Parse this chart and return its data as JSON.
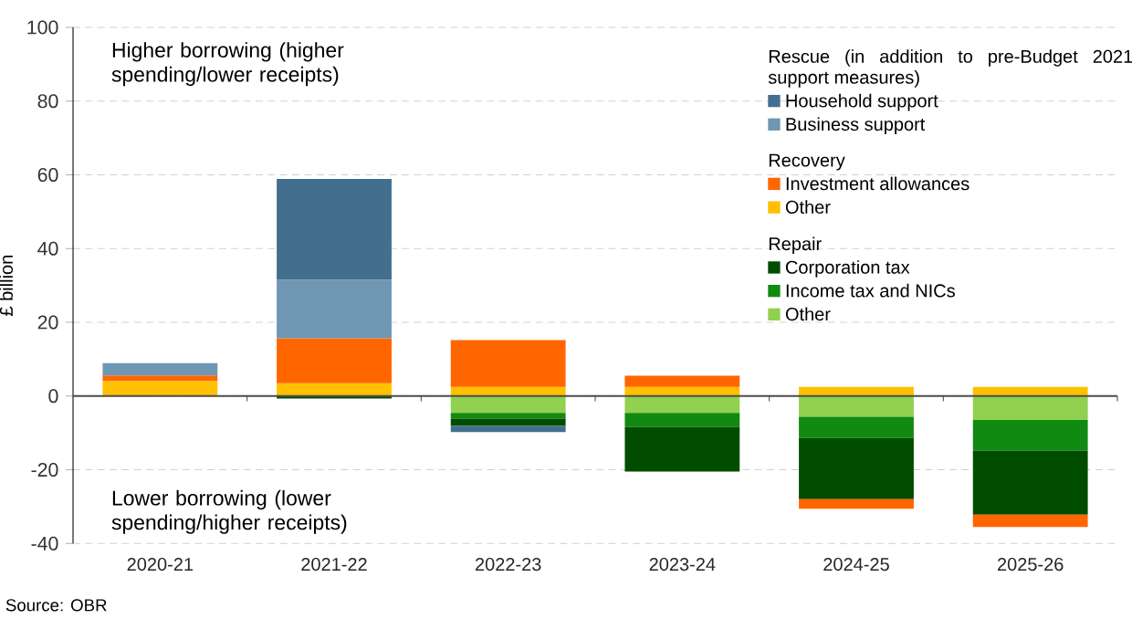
{
  "chart_data": {
    "type": "bar",
    "stacked": true,
    "ylabel": "£ billion",
    "categories": [
      "2020-21",
      "2021-22",
      "2022-23",
      "2023-24",
      "2024-25",
      "2025-26"
    ],
    "series": [
      {
        "name": "Other",
        "color": "#92d050",
        "values": [
          null,
          null,
          -4.6,
          -4.6,
          -5.6,
          -6.5
        ]
      },
      {
        "name": "Income tax and NICs",
        "color": "#118a11",
        "values": [
          null,
          null,
          -1.5,
          -3.8,
          -5.8,
          -8.3
        ]
      },
      {
        "name": "Corporation tax",
        "color": "#004d00",
        "values": [
          null,
          -0.7,
          -2.0,
          -12.1,
          -16.6,
          -17.4
        ]
      },
      {
        "name": "Other",
        "color": "#ffc000",
        "values": [
          4.1,
          3.5,
          2.5,
          2.5,
          2.5,
          2.5
        ]
      },
      {
        "name": "Investment allowances",
        "color": "#ff6600",
        "values": [
          1.5,
          12.2,
          12.7,
          3.0,
          -2.6,
          -3.3
        ]
      },
      {
        "name": "Business support",
        "color": "#6f96b2",
        "values": [
          3.3,
          15.9,
          null,
          null,
          null,
          null
        ]
      },
      {
        "name": "Household support",
        "color": "#436f8f",
        "values": [
          null,
          27.3,
          -1.7,
          null,
          null,
          null
        ]
      }
    ],
    "ylim": [
      -40,
      100
    ],
    "yticks": [
      -40,
      -20,
      0,
      20,
      40,
      60,
      80,
      100
    ],
    "grid": "y",
    "legend": "top right",
    "annotations": [
      "Higher borrowing (higher spending/lower receipts)",
      "Lower borrowing (lower spending/higher receipts)",
      "Rescue (in addition to pre-Budget 2021 support measures)",
      "Recovery",
      "Repair",
      "Source: OBR"
    ]
  }
}
